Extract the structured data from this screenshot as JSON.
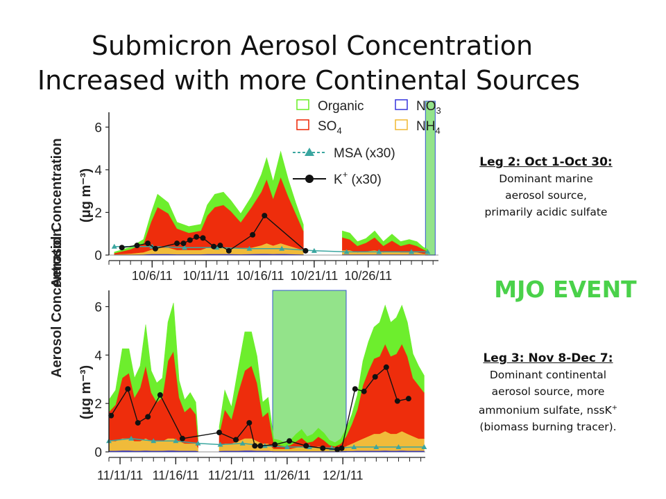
{
  "title_line1": "Submicron Aerosol Concentration",
  "title_line2": "Increased with more Continental Sources",
  "leg2": {
    "heading": "Leg 2: Oct 1-Oct 30:",
    "line1": "Dominant marine",
    "line2": "aerosol source,",
    "line3": "primarily acidic sulfate"
  },
  "mjo_label": "MJO EVENT",
  "leg3": {
    "heading": "Leg 3: Nov 8-Dec 7:",
    "line1": "Dominant continental",
    "line2": "aerosol  source, more",
    "line3": "ammonium sulfate, nssK",
    "line3_sup": "+",
    "line4": "(biomass burning tracer)."
  },
  "colors": {
    "organic": "#66ee22",
    "so4": "#ee2200",
    "no3": "#3333dd",
    "nh4": "#f0b830",
    "msa": "#3aa6a0",
    "k": "#111111",
    "mjo": "#4ad14a"
  },
  "chart_data": [
    {
      "type": "area",
      "ylabel": "Aerosol Concentration",
      "yunit": "(μg m⁻³)",
      "ylim": [
        0,
        6.5
      ],
      "yticks": [
        "0",
        "2",
        "4",
        "6"
      ],
      "xlim": [
        2,
        32.5
      ],
      "xtick_values": [
        6,
        11,
        16,
        21,
        26
      ],
      "xticks": [
        "10/6/11",
        "10/11/11",
        "10/16/11",
        "10/21/11",
        "10/26/11"
      ],
      "legend": [
        {
          "label": "Organic",
          "key": "organic",
          "kind": "box"
        },
        {
          "label": "NO",
          "sub": "3",
          "key": "no3",
          "kind": "box"
        },
        {
          "label": "SO",
          "sub": "4",
          "key": "so4",
          "kind": "box"
        },
        {
          "label": "NH",
          "sub": "4",
          "key": "nh4",
          "kind": "box"
        },
        {
          "label": "MSA (x30)",
          "key": "msa",
          "kind": "tri"
        },
        {
          "label": "K",
          "sup": "+",
          "tail": " (x30)",
          "key": "k",
          "kind": "dot"
        }
      ],
      "highlight_x": [
        31.3,
        32.2
      ],
      "gaps": [
        [
          20.1,
          23.5
        ]
      ],
      "stack": {
        "x": [
          2.5,
          4,
          5.2,
          5.9,
          6.5,
          7.5,
          8.3,
          9.4,
          10.5,
          11.1,
          11.8,
          12.6,
          13.3,
          14.2,
          15.2,
          16.1,
          16.6,
          17.2,
          17.9,
          18.6,
          19.3,
          20,
          23.6,
          24.3,
          25,
          25.8,
          26.6,
          27.4,
          28.2,
          29,
          29.8,
          30.5,
          31.1,
          31.5
        ],
        "so4": [
          0.05,
          0.2,
          0.4,
          1.3,
          1.9,
          1.6,
          1.0,
          0.8,
          0.9,
          1.5,
          1.9,
          2.0,
          1.7,
          1.2,
          1.9,
          2.5,
          3.0,
          2.2,
          3.1,
          2.3,
          1.6,
          0.9,
          0.6,
          0.5,
          0.3,
          0.4,
          0.6,
          0.3,
          0.5,
          0.3,
          0.4,
          0.3,
          0.2,
          0.1
        ],
        "organic": [
          0.05,
          0.1,
          0.2,
          0.4,
          0.6,
          0.5,
          0.3,
          0.3,
          0.3,
          0.5,
          0.6,
          0.6,
          0.5,
          0.4,
          0.5,
          0.8,
          1.0,
          0.8,
          1.2,
          0.8,
          0.5,
          0.3,
          0.3,
          0.3,
          0.2,
          0.2,
          0.3,
          0.2,
          0.3,
          0.2,
          0.2,
          0.2,
          0.1,
          0.1
        ],
        "nh4": [
          0.02,
          0.05,
          0.1,
          0.2,
          0.3,
          0.3,
          0.2,
          0.2,
          0.2,
          0.3,
          0.3,
          0.3,
          0.3,
          0.3,
          0.3,
          0.4,
          0.5,
          0.4,
          0.5,
          0.4,
          0.3,
          0.2,
          0.2,
          0.2,
          0.1,
          0.15,
          0.2,
          0.1,
          0.15,
          0.1,
          0.1,
          0.1,
          0.05,
          0.05
        ],
        "no3": [
          0.02,
          0.02,
          0.03,
          0.05,
          0.05,
          0.05,
          0.04,
          0.04,
          0.04,
          0.05,
          0.05,
          0.05,
          0.05,
          0.04,
          0.05,
          0.06,
          0.06,
          0.05,
          0.06,
          0.05,
          0.04,
          0.03,
          0.03,
          0.03,
          0.03,
          0.03,
          0.03,
          0.03,
          0.03,
          0.03,
          0.03,
          0.03,
          0.02,
          0.02
        ]
      },
      "msa": {
        "x": [
          2.5,
          6,
          9,
          12,
          15,
          18,
          21,
          24,
          27,
          30,
          31.5
        ],
        "y": [
          0.4,
          0.4,
          0.35,
          0.35,
          0.3,
          0.3,
          0.2,
          0.15,
          0.15,
          0.15,
          0.15
        ]
      },
      "k": {
        "x": [
          3.2,
          4.6,
          5.6,
          6.3,
          8.3,
          8.9,
          9.5,
          10.1,
          10.7,
          11.7,
          12.3,
          13.1,
          15.3,
          16.4,
          20.2
        ],
        "y": [
          0.35,
          0.45,
          0.55,
          0.3,
          0.55,
          0.55,
          0.7,
          0.85,
          0.8,
          0.4,
          0.45,
          0.2,
          0.95,
          1.85,
          0.2
        ]
      }
    },
    {
      "type": "area",
      "ylabel": "Aerosol Concentration",
      "yunit": "(μg m⁻³)",
      "ylim": [
        0,
        6.5
      ],
      "yticks": [
        "0",
        "2",
        "4",
        "6"
      ],
      "xlim": [
        10,
        38.4
      ],
      "xtick_values": [
        11,
        16,
        21,
        26,
        31
      ],
      "xticks": [
        "11/11/11",
        "11/16/11",
        "11/21/11",
        "11/26/11",
        "12/1/11"
      ],
      "highlight_x": [
        24.7,
        31.3
      ],
      "gaps": [
        [
          18.1,
          19.8
        ]
      ],
      "stack": {
        "x": [
          10,
          10.6,
          11.2,
          11.8,
          12.3,
          12.8,
          13.3,
          13.8,
          14.3,
          14.8,
          15.3,
          15.8,
          16.3,
          16.8,
          17.3,
          17.8,
          18,
          19.9,
          20.4,
          21,
          21.6,
          22.2,
          22.8,
          23.3,
          23.8,
          24.3,
          24.8,
          25.3,
          25.8,
          26.3,
          26.8,
          27.3,
          27.8,
          28.3,
          28.8,
          29.3,
          29.8,
          30.3,
          30.8,
          31.3,
          31.8,
          32.3,
          32.8,
          33.3,
          33.8,
          34.3,
          34.8,
          35.3,
          35.8,
          36.3,
          36.8,
          37.3,
          37.8,
          38.3
        ],
        "so4": [
          1.2,
          1.5,
          2.5,
          2.7,
          1.8,
          2.2,
          3.0,
          2.0,
          1.6,
          1.8,
          3.2,
          3.6,
          1.8,
          1.3,
          1.5,
          1.2,
          0.3,
          0.5,
          1.4,
          1.0,
          2.0,
          2.8,
          3.0,
          2.4,
          1.1,
          1.3,
          0.2,
          0.15,
          0.1,
          0.15,
          0.25,
          0.35,
          0.2,
          0.25,
          0.4,
          0.3,
          0.15,
          0.1,
          0.2,
          0.4,
          0.8,
          1.3,
          2.2,
          2.7,
          3.1,
          3.2,
          3.6,
          3.2,
          3.3,
          3.6,
          3.2,
          2.4,
          2.2,
          1.9
        ],
        "organic": [
          0.5,
          0.6,
          1.2,
          1.0,
          0.8,
          0.9,
          1.7,
          0.9,
          0.8,
          0.8,
          1.6,
          2.0,
          0.7,
          0.5,
          0.6,
          0.5,
          0.2,
          0.3,
          0.8,
          0.5,
          1.0,
          1.6,
          1.4,
          1.1,
          0.6,
          0.6,
          0.2,
          0.2,
          0.15,
          0.2,
          0.3,
          0.35,
          0.25,
          0.3,
          0.35,
          0.3,
          0.2,
          0.15,
          0.2,
          0.3,
          0.4,
          0.6,
          1.0,
          1.2,
          1.3,
          1.4,
          1.6,
          1.4,
          1.5,
          1.6,
          1.4,
          1.0,
          0.8,
          0.7
        ],
        "nh4": [
          0.4,
          0.4,
          0.5,
          0.5,
          0.4,
          0.4,
          0.5,
          0.4,
          0.4,
          0.4,
          0.5,
          0.5,
          0.4,
          0.3,
          0.3,
          0.3,
          0.15,
          0.2,
          0.3,
          0.3,
          0.4,
          0.5,
          0.5,
          0.4,
          0.3,
          0.3,
          0.1,
          0.1,
          0.1,
          0.1,
          0.15,
          0.2,
          0.15,
          0.15,
          0.2,
          0.15,
          0.1,
          0.1,
          0.1,
          0.2,
          0.3,
          0.4,
          0.5,
          0.6,
          0.7,
          0.7,
          0.8,
          0.7,
          0.7,
          0.8,
          0.7,
          0.6,
          0.5,
          0.5
        ],
        "no3": [
          0.05,
          0.05,
          0.06,
          0.06,
          0.05,
          0.05,
          0.06,
          0.05,
          0.05,
          0.05,
          0.06,
          0.06,
          0.05,
          0.05,
          0.05,
          0.05,
          0.03,
          0.04,
          0.05,
          0.05,
          0.05,
          0.06,
          0.06,
          0.05,
          0.05,
          0.05,
          0.03,
          0.03,
          0.03,
          0.03,
          0.03,
          0.03,
          0.03,
          0.03,
          0.03,
          0.03,
          0.03,
          0.03,
          0.03,
          0.04,
          0.04,
          0.05,
          0.05,
          0.05,
          0.05,
          0.05,
          0.06,
          0.05,
          0.05,
          0.06,
          0.05,
          0.05,
          0.05,
          0.05
        ]
      },
      "msa": {
        "x": [
          10,
          12,
          14,
          16,
          18,
          20,
          22,
          24,
          26,
          28,
          30,
          32,
          34,
          36,
          38.3
        ],
        "y": [
          0.45,
          0.55,
          0.45,
          0.45,
          0.35,
          0.3,
          0.35,
          0.25,
          0.2,
          0.2,
          0.15,
          0.2,
          0.2,
          0.2,
          0.2
        ]
      },
      "k": {
        "x": [
          10.2,
          11.7,
          12.6,
          13.5,
          14.6,
          16.6,
          19.9,
          21.4,
          22.6,
          23.1,
          23.6,
          24.9,
          26.2,
          27.7,
          29.2,
          30.5,
          30.9,
          32.1,
          32.9,
          33.9,
          34.9,
          35.9,
          36.9
        ],
        "y": [
          1.5,
          2.6,
          1.2,
          1.45,
          2.35,
          0.55,
          0.8,
          0.5,
          1.2,
          0.25,
          0.25,
          0.3,
          0.45,
          0.25,
          0.15,
          0.1,
          0.15,
          2.6,
          2.5,
          3.1,
          3.5,
          2.1,
          2.2
        ]
      }
    }
  ]
}
